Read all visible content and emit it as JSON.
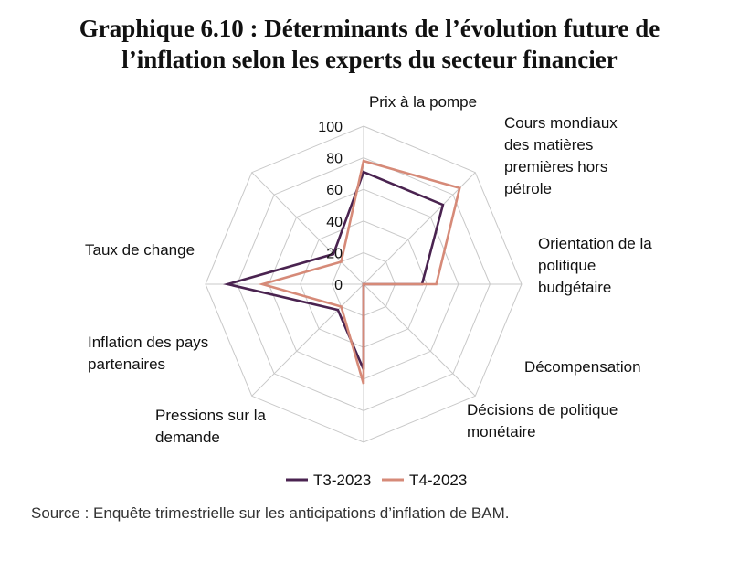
{
  "title_line1": "Graphique 6.10 : Déterminants de l’évolution future de",
  "title_line2": "l’inflation selon les experts du secteur financier",
  "source": "Source : Enquête trimestrielle sur les anticipations d’inflation de BAM.",
  "chart_data": {
    "type": "radar",
    "title": "Graphique 6.10 : Déterminants de l’évolution future de l’inflation selon les experts du secteur financier",
    "categories": [
      "Prix à la pompe",
      "Cours mondiaux des matières premières hors pétrole",
      "Orientation de la politique budgétaire",
      "Décompensation",
      "Décisions de politique monétaire",
      "Pressions sur la demande",
      "Inflation des pays partenaires",
      "Taux de change"
    ],
    "category_lines": [
      [
        "Prix à la pompe"
      ],
      [
        "Cours mondiaux",
        "des matières",
        "premières hors",
        "pétrole"
      ],
      [
        "Orientation de la",
        "politique",
        "budgétaire"
      ],
      [
        "Décompensation"
      ],
      [
        "Décisions de politique",
        "monétaire"
      ],
      [
        "Pressions sur la",
        "demande"
      ],
      [
        "Inflation des pays",
        "partenaires"
      ],
      [
        "Taux de change"
      ]
    ],
    "rlim": [
      0,
      100
    ],
    "ticks": [
      0,
      20,
      40,
      60,
      80,
      100
    ],
    "grid": true,
    "legend": "bottom",
    "series": [
      {
        "name": "T3-2023",
        "color": "#4a2350",
        "values": [
          71,
          71,
          37,
          0,
          54,
          23,
          86,
          27
        ]
      },
      {
        "name": "T4-2023",
        "color": "#d68a78",
        "values": [
          78,
          86,
          46,
          0,
          63,
          20,
          64,
          20
        ]
      }
    ]
  }
}
